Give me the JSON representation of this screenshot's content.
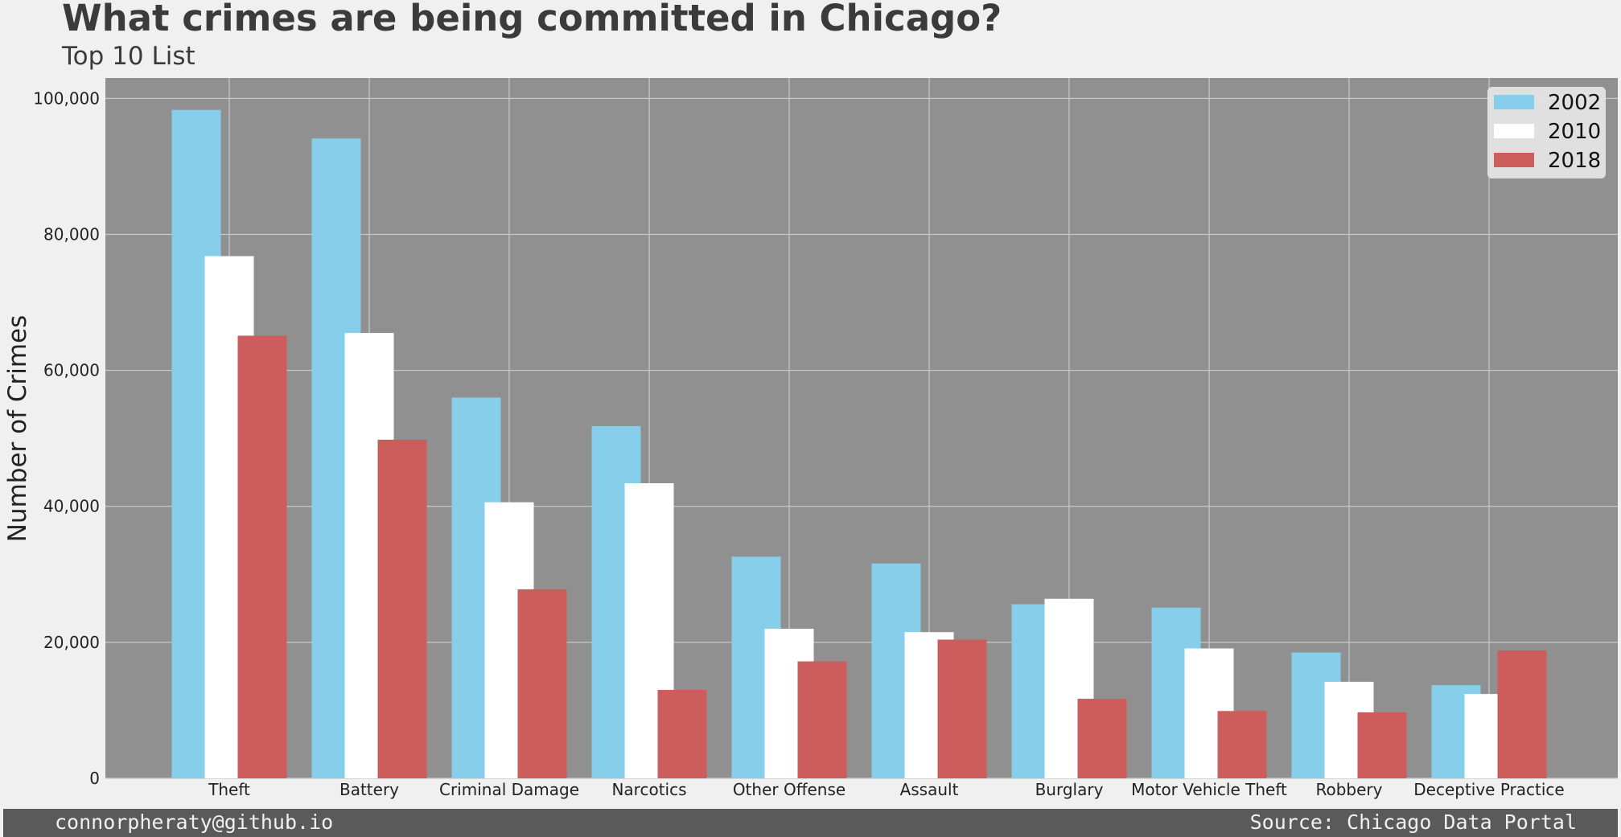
{
  "header": {
    "title": "What crimes are being committed in Chicago?",
    "subtitle": "Top 10 List"
  },
  "footer": {
    "left": "connorpheraty@github.io",
    "right": "Source: Chicago Data Portal"
  },
  "colors": {
    "background": "#f0f0f0",
    "plot_background": "#909090",
    "grid": "#c8c8c8",
    "text": "#3b3b3b",
    "footer_bar": "#5a5a5a"
  },
  "chart_data": {
    "type": "bar",
    "title": "What crimes are being committed in Chicago?",
    "subtitle": "Top 10 List",
    "xlabel": "",
    "ylabel": "Number of Crimes",
    "ylim": [
      0,
      103000
    ],
    "yticks": [
      0,
      20000,
      40000,
      60000,
      80000,
      100000
    ],
    "ytick_labels": [
      "0",
      "20,000",
      "40,000",
      "60,000",
      "80,000",
      "100,000"
    ],
    "grid": true,
    "legend_position": "top-right",
    "categories": [
      "Theft",
      "Battery",
      "Criminal Damage",
      "Narcotics",
      "Other Offense",
      "Assault",
      "Burglary",
      "Motor Vehicle Theft",
      "Robbery",
      "Deceptive Practice"
    ],
    "series": [
      {
        "name": "2002",
        "color": "#87ceeb",
        "values": [
          98300,
          94100,
          56000,
          51800,
          32600,
          31600,
          25600,
          25100,
          18500,
          13700
        ]
      },
      {
        "name": "2010",
        "color": "#ffffff",
        "values": [
          76800,
          65500,
          40600,
          43400,
          22000,
          21500,
          26400,
          19100,
          14200,
          12400
        ]
      },
      {
        "name": "2018",
        "color": "#cd5c5c",
        "values": [
          65100,
          49800,
          27800,
          13000,
          17200,
          20400,
          11700,
          9900,
          9700,
          18800
        ]
      }
    ]
  }
}
